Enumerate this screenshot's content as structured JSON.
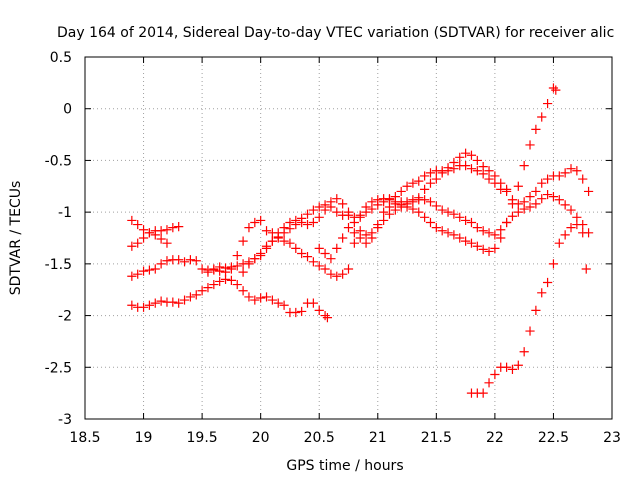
{
  "chart_data": {
    "type": "scatter",
    "title": "Day 164 of 2014, Sidereal Day-to-day VTEC variation (SDTVAR) for receiver alic",
    "xlabel": "GPS time / hours",
    "ylabel": "SDTVAR / TECUs",
    "xlim": [
      18.5,
      23
    ],
    "ylim": [
      -3,
      0.5
    ],
    "xticks": [
      "18.5",
      "19",
      "19.5",
      "20",
      "20.5",
      "21",
      "21.5",
      "22",
      "22.5",
      "23"
    ],
    "yticks": [
      "0.5",
      "0",
      "-0.5",
      "-1",
      "-1.5",
      "-2",
      "-2.5",
      "-3"
    ],
    "grid": true,
    "marker": "+",
    "color": "#ff0000",
    "series": [
      {
        "points": [
          [
            18.9,
            -1.08
          ],
          [
            18.95,
            -1.12
          ],
          [
            19.0,
            -1.17
          ],
          [
            19.05,
            -1.2
          ],
          [
            19.1,
            -1.18
          ],
          [
            19.15,
            -1.18
          ],
          [
            19.2,
            -1.17
          ],
          [
            19.25,
            -1.15
          ],
          [
            19.3,
            -1.14
          ]
        ]
      },
      {
        "points": [
          [
            18.9,
            -1.33
          ],
          [
            18.95,
            -1.3
          ],
          [
            19.0,
            -1.25
          ],
          [
            19.05,
            -1.2
          ],
          [
            19.1,
            -1.22
          ],
          [
            19.15,
            -1.26
          ],
          [
            19.2,
            -1.3
          ]
        ]
      },
      {
        "points": [
          [
            18.9,
            -1.62
          ],
          [
            18.95,
            -1.6
          ],
          [
            19.0,
            -1.57
          ],
          [
            19.05,
            -1.56
          ],
          [
            19.1,
            -1.55
          ],
          [
            19.15,
            -1.5
          ],
          [
            19.2,
            -1.47
          ],
          [
            19.25,
            -1.46
          ],
          [
            19.3,
            -1.46
          ],
          [
            19.35,
            -1.48
          ],
          [
            19.4,
            -1.46
          ],
          [
            19.45,
            -1.47
          ],
          [
            19.5,
            -1.55
          ],
          [
            19.55,
            -1.56
          ],
          [
            19.6,
            -1.56
          ],
          [
            19.65,
            -1.57
          ],
          [
            19.7,
            -1.58
          ],
          [
            19.75,
            -1.53
          ],
          [
            19.8,
            -1.42
          ],
          [
            19.85,
            -1.28
          ],
          [
            19.9,
            -1.15
          ],
          [
            19.95,
            -1.1
          ],
          [
            20.0,
            -1.08
          ],
          [
            20.05,
            -1.18
          ],
          [
            20.1,
            -1.2
          ],
          [
            20.15,
            -1.25
          ],
          [
            20.2,
            -1.28
          ],
          [
            20.25,
            -1.3
          ],
          [
            20.3,
            -1.35
          ],
          [
            20.35,
            -1.4
          ],
          [
            20.4,
            -1.43
          ],
          [
            20.45,
            -1.48
          ],
          [
            20.5,
            -1.52
          ],
          [
            20.55,
            -1.55
          ],
          [
            20.6,
            -1.6
          ],
          [
            20.65,
            -1.62
          ],
          [
            20.7,
            -1.6
          ],
          [
            20.75,
            -1.55
          ],
          [
            20.8,
            -1.3
          ],
          [
            20.85,
            -1.05
          ],
          [
            20.9,
            -0.95
          ],
          [
            20.95,
            -0.9
          ],
          [
            21.0,
            -0.88
          ],
          [
            21.05,
            -0.87
          ],
          [
            21.1,
            -0.87
          ],
          [
            21.15,
            -0.9
          ],
          [
            21.2,
            -0.93
          ],
          [
            21.25,
            -0.92
          ],
          [
            21.3,
            -0.9
          ],
          [
            21.35,
            -0.86
          ],
          [
            21.4,
            -0.78
          ],
          [
            21.45,
            -0.72
          ],
          [
            21.5,
            -0.68
          ],
          [
            21.55,
            -0.62
          ],
          [
            21.6,
            -0.57
          ],
          [
            21.65,
            -0.52
          ],
          [
            21.7,
            -0.47
          ],
          [
            21.75,
            -0.43
          ],
          [
            21.8,
            -0.45
          ],
          [
            21.85,
            -0.5
          ],
          [
            21.9,
            -0.56
          ],
          [
            21.95,
            -0.6
          ],
          [
            22.0,
            -0.65
          ],
          [
            22.05,
            -0.72
          ],
          [
            22.1,
            -0.78
          ],
          [
            22.15,
            -0.88
          ],
          [
            22.2,
            -0.92
          ],
          [
            22.25,
            -0.9
          ],
          [
            22.3,
            -0.85
          ],
          [
            22.35,
            -0.8
          ],
          [
            22.4,
            -0.72
          ],
          [
            22.45,
            -0.68
          ],
          [
            22.5,
            -0.65
          ],
          [
            22.55,
            -0.65
          ],
          [
            22.6,
            -0.62
          ],
          [
            22.65,
            -0.58
          ],
          [
            22.7,
            -0.6
          ],
          [
            22.75,
            -0.68
          ],
          [
            22.8,
            -0.8
          ]
        ]
      },
      {
        "points": [
          [
            18.9,
            -1.9
          ],
          [
            18.95,
            -1.92
          ],
          [
            19.0,
            -1.92
          ],
          [
            19.05,
            -1.9
          ],
          [
            19.1,
            -1.88
          ],
          [
            19.15,
            -1.86
          ],
          [
            19.2,
            -1.87
          ],
          [
            19.25,
            -1.87
          ],
          [
            19.3,
            -1.88
          ],
          [
            19.35,
            -1.85
          ],
          [
            19.4,
            -1.82
          ],
          [
            19.45,
            -1.8
          ],
          [
            19.5,
            -1.76
          ],
          [
            19.55,
            -1.73
          ],
          [
            19.6,
            -1.7
          ],
          [
            19.65,
            -1.67
          ],
          [
            19.7,
            -1.65
          ],
          [
            19.75,
            -1.66
          ],
          [
            19.8,
            -1.7
          ],
          [
            19.85,
            -1.76
          ],
          [
            19.9,
            -1.82
          ],
          [
            19.95,
            -1.85
          ],
          [
            20.0,
            -1.83
          ],
          [
            20.05,
            -1.82
          ],
          [
            20.1,
            -1.85
          ],
          [
            20.15,
            -1.88
          ],
          [
            20.2,
            -1.9
          ],
          [
            20.25,
            -1.97
          ],
          [
            20.3,
            -1.97
          ],
          [
            20.35,
            -1.96
          ],
          [
            20.4,
            -1.88
          ],
          [
            20.45,
            -1.88
          ],
          [
            20.5,
            -1.95
          ],
          [
            20.55,
            -2.0
          ],
          [
            20.57,
            -2.02
          ]
        ]
      },
      {
        "points": [
          [
            19.85,
            -1.58
          ],
          [
            19.9,
            -1.5
          ],
          [
            19.95,
            -1.45
          ],
          [
            20.0,
            -1.42
          ],
          [
            20.05,
            -1.35
          ],
          [
            20.1,
            -1.28
          ],
          [
            20.15,
            -1.2
          ],
          [
            20.2,
            -1.15
          ],
          [
            20.25,
            -1.1
          ],
          [
            20.3,
            -1.08
          ],
          [
            20.35,
            -1.1
          ],
          [
            20.4,
            -1.12
          ],
          [
            20.45,
            -1.1
          ],
          [
            20.5,
            -1.05
          ],
          [
            20.55,
            -0.98
          ],
          [
            20.6,
            -0.9
          ],
          [
            20.65,
            -0.87
          ],
          [
            20.7,
            -0.92
          ],
          [
            20.75,
            -1.0
          ],
          [
            20.8,
            -1.1
          ],
          [
            20.85,
            -1.18
          ],
          [
            20.9,
            -1.22
          ],
          [
            20.95,
            -1.2
          ],
          [
            21.0,
            -1.12
          ],
          [
            21.05,
            -1.0
          ],
          [
            21.1,
            -0.95
          ],
          [
            21.15,
            -0.92
          ],
          [
            21.2,
            -0.9
          ],
          [
            21.25,
            -0.9
          ],
          [
            21.3,
            -0.88
          ],
          [
            21.35,
            -0.88
          ],
          [
            21.4,
            -0.88
          ],
          [
            21.45,
            -0.9
          ],
          [
            21.5,
            -0.94
          ],
          [
            21.55,
            -0.98
          ],
          [
            21.6,
            -1.0
          ],
          [
            21.65,
            -1.02
          ],
          [
            21.7,
            -1.05
          ],
          [
            21.75,
            -1.08
          ],
          [
            21.8,
            -1.1
          ],
          [
            21.85,
            -1.15
          ],
          [
            21.9,
            -1.18
          ],
          [
            21.95,
            -1.2
          ],
          [
            22.0,
            -1.22
          ],
          [
            22.05,
            -1.17
          ],
          [
            22.1,
            -1.1
          ],
          [
            22.15,
            -1.04
          ],
          [
            22.2,
            -1.0
          ],
          [
            22.25,
            -0.97
          ],
          [
            22.3,
            -0.95
          ],
          [
            22.35,
            -0.92
          ],
          [
            22.4,
            -0.87
          ],
          [
            22.45,
            -0.83
          ],
          [
            22.5,
            -0.85
          ],
          [
            22.55,
            -0.88
          ],
          [
            22.6,
            -0.93
          ],
          [
            22.65,
            -0.98
          ],
          [
            22.7,
            -1.05
          ],
          [
            22.75,
            -1.12
          ],
          [
            22.8,
            -1.2
          ]
        ]
      },
      {
        "points": [
          [
            19.55,
            -1.58
          ],
          [
            19.6,
            -1.55
          ],
          [
            19.65,
            -1.53
          ],
          [
            19.7,
            -1.54
          ],
          [
            19.75,
            -1.55
          ],
          [
            19.8,
            -1.52
          ],
          [
            19.85,
            -1.5
          ],
          [
            19.9,
            -1.48
          ],
          [
            19.95,
            -1.45
          ],
          [
            20.0,
            -1.4
          ],
          [
            20.05,
            -1.33
          ],
          [
            20.1,
            -1.28
          ],
          [
            20.15,
            -1.24
          ],
          [
            20.2,
            -1.2
          ],
          [
            20.25,
            -1.16
          ],
          [
            20.3,
            -1.12
          ],
          [
            20.35,
            -1.06
          ],
          [
            20.4,
            -1.02
          ],
          [
            20.45,
            -0.98
          ],
          [
            20.5,
            -0.95
          ],
          [
            20.55,
            -0.93
          ],
          [
            20.6,
            -0.95
          ],
          [
            20.65,
            -1.0
          ],
          [
            20.7,
            -1.03
          ],
          [
            20.75,
            -1.03
          ],
          [
            20.8,
            -1.05
          ],
          [
            20.85,
            -1.03
          ],
          [
            20.9,
            -1.0
          ],
          [
            20.95,
            -0.97
          ],
          [
            21.0,
            -0.93
          ],
          [
            21.05,
            -0.9
          ],
          [
            21.1,
            -0.88
          ],
          [
            21.15,
            -0.85
          ],
          [
            21.2,
            -0.8
          ],
          [
            21.25,
            -0.75
          ],
          [
            21.3,
            -0.72
          ],
          [
            21.35,
            -0.7
          ],
          [
            21.4,
            -0.65
          ],
          [
            21.45,
            -0.62
          ],
          [
            21.5,
            -0.6
          ],
          [
            21.55,
            -0.6
          ],
          [
            21.6,
            -0.6
          ],
          [
            21.65,
            -0.58
          ],
          [
            21.7,
            -0.55
          ],
          [
            21.75,
            -0.55
          ],
          [
            21.8,
            -0.58
          ],
          [
            21.85,
            -0.6
          ],
          [
            21.9,
            -0.63
          ],
          [
            21.95,
            -0.68
          ],
          [
            22.0,
            -0.72
          ],
          [
            22.05,
            -0.78
          ],
          [
            22.1,
            -0.8
          ]
        ]
      },
      {
        "points": [
          [
            20.5,
            -1.35
          ],
          [
            20.55,
            -1.4
          ],
          [
            20.6,
            -1.45
          ],
          [
            20.65,
            -1.35
          ],
          [
            20.7,
            -1.25
          ],
          [
            20.75,
            -1.15
          ],
          [
            20.8,
            -1.2
          ],
          [
            20.85,
            -1.25
          ],
          [
            20.9,
            -1.3
          ],
          [
            20.95,
            -1.25
          ],
          [
            21.0,
            -1.15
          ],
          [
            21.05,
            -1.08
          ],
          [
            21.1,
            -1.02
          ],
          [
            21.15,
            -0.98
          ],
          [
            21.2,
            -0.95
          ],
          [
            21.25,
            -0.95
          ],
          [
            21.3,
            -0.97
          ],
          [
            21.35,
            -1.0
          ],
          [
            21.4,
            -1.05
          ],
          [
            21.45,
            -1.1
          ],
          [
            21.5,
            -1.15
          ],
          [
            21.55,
            -1.18
          ],
          [
            21.6,
            -1.2
          ],
          [
            21.65,
            -1.22
          ],
          [
            21.7,
            -1.25
          ],
          [
            21.75,
            -1.28
          ],
          [
            21.8,
            -1.3
          ],
          [
            21.85,
            -1.33
          ],
          [
            21.9,
            -1.36
          ],
          [
            21.95,
            -1.38
          ],
          [
            22.0,
            -1.35
          ],
          [
            22.05,
            -1.25
          ],
          [
            22.1,
            -1.1
          ],
          [
            22.15,
            -0.92
          ],
          [
            22.2,
            -0.75
          ],
          [
            22.25,
            -0.55
          ],
          [
            22.3,
            -0.35
          ],
          [
            22.35,
            -0.2
          ],
          [
            22.4,
            -0.08
          ],
          [
            22.45,
            0.05
          ],
          [
            22.5,
            0.2
          ],
          [
            22.52,
            0.18
          ]
        ]
      },
      {
        "points": [
          [
            21.8,
            -2.75
          ],
          [
            21.85,
            -2.75
          ],
          [
            21.9,
            -2.75
          ],
          [
            21.95,
            -2.65
          ],
          [
            22.0,
            -2.57
          ],
          [
            22.05,
            -2.5
          ],
          [
            22.1,
            -2.5
          ],
          [
            22.15,
            -2.52
          ],
          [
            22.2,
            -2.48
          ],
          [
            22.25,
            -2.35
          ],
          [
            22.3,
            -2.15
          ],
          [
            22.35,
            -1.95
          ],
          [
            22.4,
            -1.78
          ],
          [
            22.45,
            -1.68
          ],
          [
            22.5,
            -1.5
          ],
          [
            22.55,
            -1.3
          ],
          [
            22.6,
            -1.22
          ],
          [
            22.65,
            -1.15
          ],
          [
            22.7,
            -1.12
          ],
          [
            22.75,
            -1.2
          ]
        ]
      },
      {
        "points": [
          [
            22.78,
            -1.55
          ]
        ]
      }
    ]
  }
}
